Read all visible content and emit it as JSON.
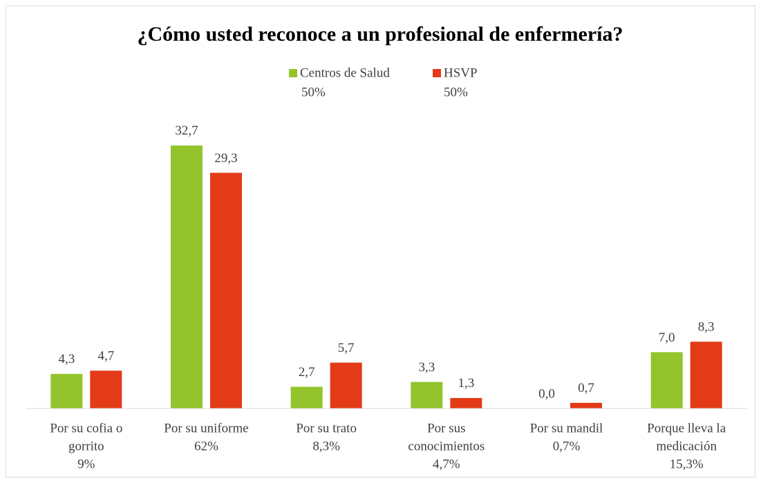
{
  "chart_data": {
    "type": "bar",
    "title": "¿Cómo usted reconoce a un profesional de enfermería?",
    "categories": [
      [
        "Por su cofia o",
        "gorrito",
        "9%"
      ],
      [
        "Por su uniforme",
        "62%"
      ],
      [
        "Por su trato",
        "8,3%"
      ],
      [
        "Por sus",
        "conocimientos",
        "4,7%"
      ],
      [
        "Por su mandil",
        "0,7%"
      ],
      [
        "Porque lleva la",
        "medicación",
        "15,3%"
      ]
    ],
    "series": [
      {
        "name": "Centros de Salud",
        "share": "50%",
        "color": "#94c42b",
        "values": [
          4.3,
          32.7,
          2.7,
          3.3,
          0.0,
          7.0
        ],
        "value_labels": [
          "4,3",
          "32,7",
          "2,7",
          "3,3",
          "0,0",
          "7,0"
        ]
      },
      {
        "name": "HSVP",
        "share": "50%",
        "color": "#e33a18",
        "values": [
          4.7,
          29.3,
          5.7,
          1.3,
          0.7,
          8.3
        ],
        "value_labels": [
          "4,7",
          "29,3",
          "5,7",
          "1,3",
          "0,7",
          "8,3"
        ]
      }
    ],
    "ylim": [
      0,
      35
    ],
    "grid": false,
    "legend": "top"
  }
}
